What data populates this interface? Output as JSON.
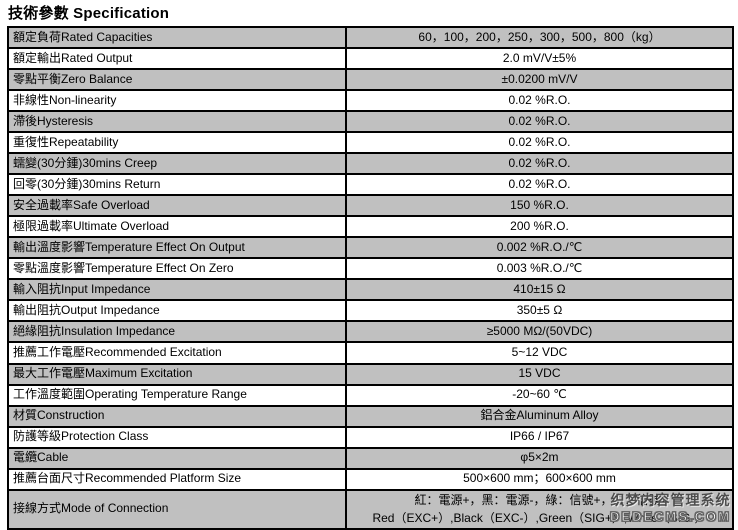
{
  "title": "技術參數 Specification",
  "colors": {
    "row_shade": "#c0c0c0",
    "border": "#000000",
    "watermark_gray": "#5a5a5a"
  },
  "rows": [
    {
      "label": "額定負荷Rated Capacities",
      "value": "60，100，200，250，300，500，800（kg）"
    },
    {
      "label": "額定輸出Rated Output",
      "value": "2.0 mV/V±5%"
    },
    {
      "label": "零點平衡Zero Balance",
      "value": "±0.0200 mV/V"
    },
    {
      "label": "非線性Non-linearity",
      "value": "0.02 %R.O."
    },
    {
      "label": "滯後Hysteresis",
      "value": "0.02 %R.O."
    },
    {
      "label": "重復性Repeatability",
      "value": "0.02 %R.O."
    },
    {
      "label": "蠕變(30分鍾)30mins Creep",
      "value": "0.02 %R.O."
    },
    {
      "label": "回零(30分鍾)30mins Return",
      "value": "0.02 %R.O."
    },
    {
      "label": "安全過載率Safe Overload",
      "value": "150 %R.O."
    },
    {
      "label": "極限過載率Ultimate Overload",
      "value": "200 %R.O."
    },
    {
      "label": "輸出溫度影響Temperature Effect On Output",
      "value": "0.002 %R.O./℃"
    },
    {
      "label": "零點溫度影響Temperature Effect On Zero",
      "value": "0.003 %R.O./℃"
    },
    {
      "label": "輸入阻抗Input Impedance",
      "value": "410±15 Ω"
    },
    {
      "label": "輸出阻抗Output Impedance",
      "value": "350±5 Ω"
    },
    {
      "label": "絕緣阻抗Insulation Impedance",
      "value": "≥5000 MΩ/(50VDC)"
    },
    {
      "label": "推薦工作電壓Recommended Excitation",
      "value": "5~12 VDC"
    },
    {
      "label": "最大工作電壓Maximum Excitation",
      "value": "15 VDC"
    },
    {
      "label": "工作溫度範圍Operating Temperature Range",
      "value": "-20~60 ℃"
    },
    {
      "label": "材質Construction",
      "value": "鋁合金Aluminum Alloy"
    },
    {
      "label": "防護等級Protection Class",
      "value": "IP66 / IP67"
    },
    {
      "label": "電纜Cable",
      "value": "φ5×2m"
    },
    {
      "label": "推薦台面尺寸Recommended Platform Size",
      "value": "500×600 mm；600×600 mm"
    },
    {
      "label": "接線方式Mode of Connection",
      "value": "紅：電源+，黑：電源-，綠：信號+，白：信號-",
      "value2": "Red（EXC+）,Black（EXC-）,Green（SIG+）,White（SIG-）"
    }
  ],
  "watermark": {
    "line1": "织梦内容管理系统",
    "line2": "DEDECMS.COM"
  }
}
